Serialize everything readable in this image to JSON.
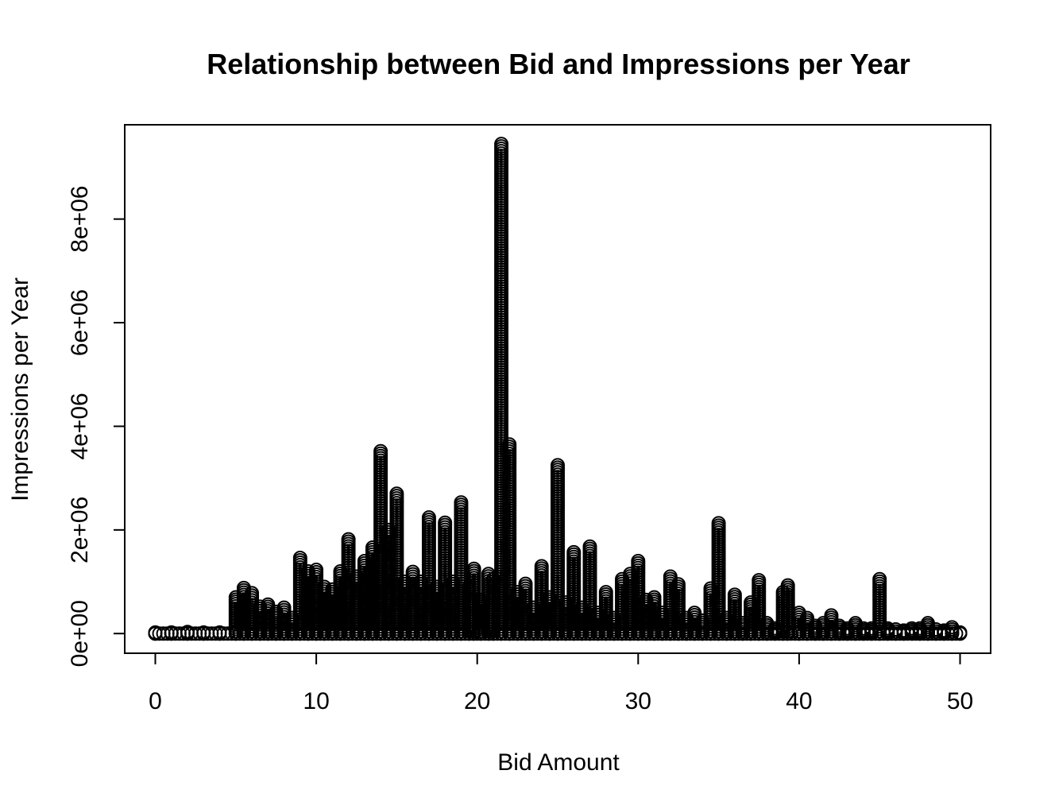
{
  "chart_data": {
    "type": "scatter",
    "title": "Relationship between Bid and Impressions per Year",
    "xlabel": "Bid Amount",
    "ylabel": "Impressions per Year",
    "xlim": [
      -1.9,
      51.9
    ],
    "ylim": [
      -380000,
      9820000
    ],
    "x_ticks": [
      0,
      10,
      20,
      30,
      40,
      50
    ],
    "x_tick_labels": [
      "0",
      "10",
      "20",
      "30",
      "40",
      "50"
    ],
    "y_ticks": [
      0,
      2000000,
      4000000,
      6000000,
      8000000
    ],
    "y_tick_labels": [
      "0e+00",
      "2e+06",
      "4e+06",
      "6e+06",
      "8e+06"
    ],
    "grid": false,
    "legend": "none",
    "marker": "open-circle",
    "color": "#000000",
    "column_maxima": [
      [
        0.0,
        20000
      ],
      [
        1.0,
        20000
      ],
      [
        2.0,
        30000
      ],
      [
        3.0,
        20000
      ],
      [
        4.0,
        20000
      ],
      [
        5.0,
        700000
      ],
      [
        5.5,
        880000
      ],
      [
        6.0,
        780000
      ],
      [
        6.5,
        520000
      ],
      [
        7.0,
        560000
      ],
      [
        7.5,
        420000
      ],
      [
        8.0,
        500000
      ],
      [
        8.5,
        300000
      ],
      [
        9.0,
        1460000
      ],
      [
        9.5,
        1200000
      ],
      [
        10.0,
        1230000
      ],
      [
        10.5,
        900000
      ],
      [
        11.0,
        850000
      ],
      [
        11.5,
        1200000
      ],
      [
        12.0,
        1820000
      ],
      [
        12.5,
        1100000
      ],
      [
        13.0,
        1400000
      ],
      [
        13.5,
        1660000
      ],
      [
        14.0,
        3520000
      ],
      [
        14.5,
        2000000
      ],
      [
        15.0,
        2700000
      ],
      [
        15.5,
        1000000
      ],
      [
        16.0,
        1190000
      ],
      [
        16.5,
        1000000
      ],
      [
        17.0,
        2240000
      ],
      [
        17.5,
        900000
      ],
      [
        18.0,
        2140000
      ],
      [
        18.5,
        1000000
      ],
      [
        19.0,
        2530000
      ],
      [
        19.5,
        900000
      ],
      [
        19.8,
        1250000
      ],
      [
        20.2,
        650000
      ],
      [
        20.7,
        1150000
      ],
      [
        21.0,
        1050000
      ],
      [
        21.5,
        9450000
      ],
      [
        22.0,
        3650000
      ],
      [
        22.5,
        800000
      ],
      [
        23.0,
        960000
      ],
      [
        23.5,
        500000
      ],
      [
        24.0,
        1300000
      ],
      [
        24.5,
        700000
      ],
      [
        25.0,
        3250000
      ],
      [
        25.5,
        600000
      ],
      [
        26.0,
        1570000
      ],
      [
        26.5,
        500000
      ],
      [
        27.0,
        1680000
      ],
      [
        27.5,
        400000
      ],
      [
        28.0,
        800000
      ],
      [
        28.5,
        300000
      ],
      [
        29.0,
        1050000
      ],
      [
        29.5,
        1150000
      ],
      [
        30.0,
        1400000
      ],
      [
        30.5,
        650000
      ],
      [
        31.0,
        700000
      ],
      [
        31.5,
        400000
      ],
      [
        32.0,
        1100000
      ],
      [
        32.5,
        950000
      ],
      [
        33.0,
        300000
      ],
      [
        33.5,
        400000
      ],
      [
        34.0,
        250000
      ],
      [
        34.5,
        870000
      ],
      [
        35.0,
        2130000
      ],
      [
        35.5,
        300000
      ],
      [
        36.0,
        750000
      ],
      [
        36.5,
        200000
      ],
      [
        37.0,
        600000
      ],
      [
        37.5,
        1030000
      ],
      [
        38.0,
        200000
      ],
      [
        38.5,
        100000
      ],
      [
        39.0,
        800000
      ],
      [
        39.3,
        930000
      ],
      [
        40.0,
        400000
      ],
      [
        40.5,
        300000
      ],
      [
        41.0,
        150000
      ],
      [
        41.5,
        200000
      ],
      [
        42.0,
        350000
      ],
      [
        42.5,
        150000
      ],
      [
        43.0,
        100000
      ],
      [
        43.5,
        200000
      ],
      [
        44.0,
        100000
      ],
      [
        44.5,
        100000
      ],
      [
        45.0,
        1050000
      ],
      [
        45.5,
        100000
      ],
      [
        46.0,
        80000
      ],
      [
        46.5,
        60000
      ],
      [
        47.0,
        100000
      ],
      [
        47.5,
        100000
      ],
      [
        48.0,
        200000
      ],
      [
        48.5,
        80000
      ],
      [
        49.0,
        60000
      ],
      [
        49.5,
        120000
      ],
      [
        50.0,
        20000
      ]
    ]
  }
}
